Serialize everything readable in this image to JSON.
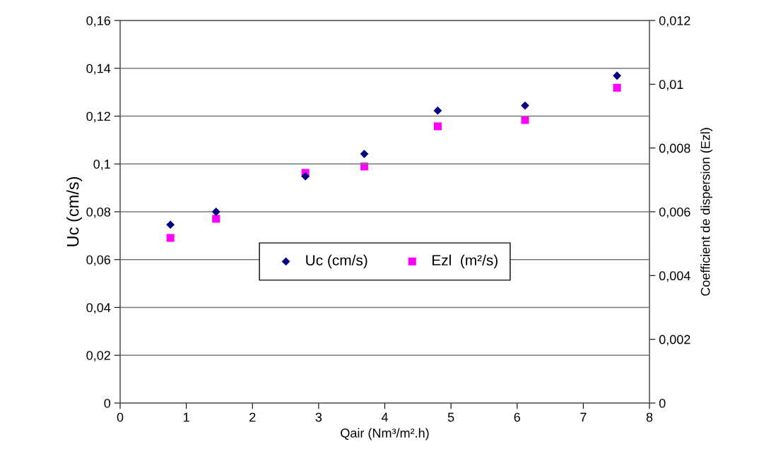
{
  "chart_data": {
    "type": "scatter",
    "xlabel": "Qair (Nm³/m².h)",
    "ylabel": "Uc (cm/s)",
    "y2label": "Coefficient de dispersion (Ezl)",
    "x": [
      0.76,
      1.45,
      2.8,
      3.69,
      4.8,
      6.12,
      7.51
    ],
    "series": [
      {
        "name": "Uc (cm/s)",
        "color": "#000080",
        "marker": "diamond",
        "values": [
          0.0746,
          0.08,
          0.0948,
          0.1042,
          0.1223,
          0.1244,
          0.1369
        ]
      },
      {
        "name": "Ezl  (m²/s)",
        "color": "#ff00ff",
        "marker": "square",
        "axis": "y2",
        "values": [
          0.00518,
          0.00578,
          0.00722,
          0.00742,
          0.00868,
          0.00888,
          0.00989
        ]
      }
    ],
    "xlim": [
      0,
      8
    ],
    "xticks": [
      0,
      1,
      2,
      3,
      4,
      5,
      6,
      7,
      8
    ],
    "ylim": [
      0,
      0.16
    ],
    "yticks": [
      0,
      {
        "value": 0.02,
        "label": "0,02"
      },
      {
        "value": 0.04,
        "label": "0,04"
      },
      {
        "value": 0.06,
        "label": "0,06"
      },
      {
        "value": 0.08,
        "label": "0,08"
      },
      {
        "value": 0.1,
        "label": "0,1"
      },
      {
        "value": 0.12,
        "label": "0,12"
      },
      {
        "value": 0.14,
        "label": "0,14"
      },
      {
        "value": 0.16,
        "label": "0,16"
      }
    ],
    "y2lim": [
      0,
      0.012
    ],
    "y2ticks": [
      0,
      {
        "value": 0.002,
        "label": "0,002"
      },
      {
        "value": 0.004,
        "label": "0,004"
      },
      {
        "value": 0.006,
        "label": "0,006"
      },
      {
        "value": 0.008,
        "label": "0,008"
      },
      {
        "value": 0.01,
        "label": "0,01"
      },
      {
        "value": 0.012,
        "label": "0,012"
      }
    ],
    "grid": "y",
    "legend": "center"
  }
}
